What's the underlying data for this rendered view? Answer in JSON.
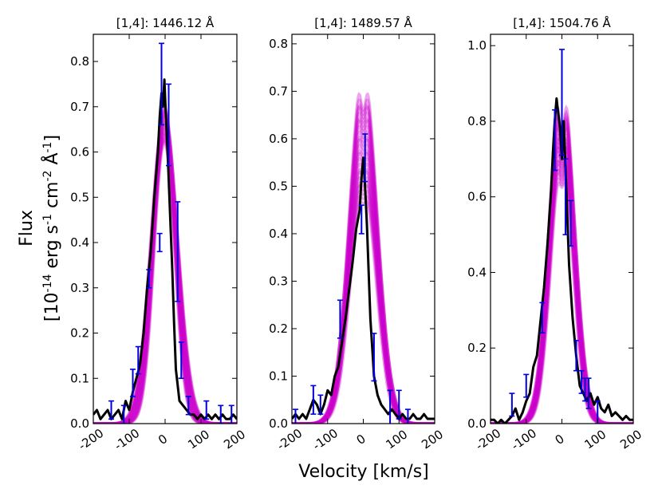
{
  "figure": {
    "ylabel_line1": "Flux",
    "ylabel_line2_parts": [
      "[10",
      "-14",
      " erg s",
      "-1",
      " cm",
      "-2",
      " Å",
      "-1",
      "]"
    ],
    "xlabel": "Velocity [km/s]"
  },
  "colors": {
    "model": "#cc00cc",
    "data": "#000000",
    "errorbar": "#0000dd"
  },
  "chart_data": [
    {
      "type": "line",
      "title": "[1,4]: 1446.12 Å",
      "xlim": [
        -200,
        200
      ],
      "ylim": [
        0,
        0.86
      ],
      "xticks": [
        -200,
        -100,
        0,
        100,
        200
      ],
      "xtick_labels": [
        "-200",
        "-100",
        "0",
        "100",
        "200"
      ],
      "yticks": [
        0.0,
        0.1,
        0.2,
        0.3,
        0.4,
        0.5,
        0.6,
        0.7,
        0.8
      ],
      "ytick_labels": [
        "0.0",
        "0.1",
        "0.2",
        "0.3",
        "0.4",
        "0.5",
        "0.6",
        "0.7",
        "0.8"
      ],
      "model_band": {
        "center": -2,
        "peak_low": 0.62,
        "peak_high": 0.7,
        "sigma_low": 28,
        "sigma_high": 38,
        "dip": 0.0
      },
      "series": [
        {
          "name": "observed",
          "x": [
            -200,
            -190,
            -180,
            -170,
            -160,
            -150,
            -140,
            -130,
            -120,
            -110,
            -100,
            -90,
            -80,
            -70,
            -60,
            -50,
            -40,
            -30,
            -20,
            -15,
            -10,
            -6,
            -2,
            0,
            4,
            8,
            12,
            16,
            20,
            25,
            30,
            40,
            50,
            60,
            70,
            80,
            90,
            100,
            110,
            120,
            130,
            140,
            150,
            160,
            170,
            180,
            190,
            200
          ],
          "y": [
            0.02,
            0.03,
            0.01,
            0.02,
            0.03,
            0.01,
            0.02,
            0.03,
            0.01,
            0.05,
            0.03,
            0.07,
            0.1,
            0.13,
            0.2,
            0.3,
            0.38,
            0.5,
            0.6,
            0.68,
            0.73,
            0.7,
            0.76,
            0.72,
            0.65,
            0.58,
            0.5,
            0.42,
            0.34,
            0.22,
            0.12,
            0.05,
            0.04,
            0.03,
            0.02,
            0.02,
            0.01,
            0.02,
            0.01,
            0.02,
            0.01,
            0.02,
            0.01,
            0.02,
            0.01,
            0.01,
            0.02,
            0.01
          ]
        }
      ],
      "errorbars": [
        {
          "x": -150,
          "y": 0.03,
          "err": 0.02
        },
        {
          "x": -115,
          "y": 0.02,
          "err": 0.02
        },
        {
          "x": -90,
          "y": 0.09,
          "err": 0.03
        },
        {
          "x": -75,
          "y": 0.14,
          "err": 0.03
        },
        {
          "x": -45,
          "y": 0.32,
          "err": 0.02
        },
        {
          "x": -15,
          "y": 0.4,
          "err": 0.02
        },
        {
          "x": -10,
          "y": 0.75,
          "err": 0.09
        },
        {
          "x": 10,
          "y": 0.66,
          "err": 0.09
        },
        {
          "x": 35,
          "y": 0.38,
          "err": 0.11
        },
        {
          "x": 45,
          "y": 0.14,
          "err": 0.04
        },
        {
          "x": 65,
          "y": 0.04,
          "err": 0.02
        },
        {
          "x": 115,
          "y": 0.03,
          "err": 0.02
        },
        {
          "x": 155,
          "y": 0.02,
          "err": 0.02
        },
        {
          "x": 185,
          "y": 0.02,
          "err": 0.02
        }
      ]
    },
    {
      "type": "line",
      "title": "[1,4]: 1489.57 Å",
      "xlim": [
        -200,
        200
      ],
      "ylim": [
        0,
        0.82
      ],
      "xticks": [
        -200,
        -100,
        0,
        100,
        200
      ],
      "xtick_labels": [
        "-200",
        "-100",
        "0",
        "100",
        "200"
      ],
      "yticks": [
        0.0,
        0.1,
        0.2,
        0.3,
        0.4,
        0.5,
        0.6,
        0.7,
        0.8
      ],
      "ytick_labels": [
        "0.0",
        "0.1",
        "0.2",
        "0.3",
        "0.4",
        "0.5",
        "0.6",
        "0.7",
        "0.8"
      ],
      "model_band": {
        "center": 0,
        "peak_low": 0.5,
        "peak_high": 0.75,
        "sigma_low": 35,
        "sigma_high": 40,
        "dip": 0.12
      },
      "series": [
        {
          "name": "observed",
          "x": [
            -200,
            -190,
            -180,
            -170,
            -160,
            -150,
            -140,
            -130,
            -120,
            -110,
            -100,
            -90,
            -80,
            -70,
            -60,
            -50,
            -40,
            -30,
            -20,
            -10,
            -5,
            0,
            5,
            10,
            15,
            20,
            25,
            30,
            40,
            50,
            60,
            70,
            80,
            90,
            100,
            110,
            120,
            130,
            140,
            150,
            160,
            170,
            180,
            190,
            200
          ],
          "y": [
            0.01,
            0.02,
            0.01,
            0.02,
            0.01,
            0.03,
            0.05,
            0.04,
            0.02,
            0.04,
            0.07,
            0.06,
            0.1,
            0.12,
            0.17,
            0.22,
            0.28,
            0.34,
            0.41,
            0.45,
            0.52,
            0.56,
            0.5,
            0.42,
            0.32,
            0.22,
            0.16,
            0.1,
            0.06,
            0.04,
            0.03,
            0.02,
            0.03,
            0.02,
            0.01,
            0.02,
            0.01,
            0.01,
            0.02,
            0.01,
            0.01,
            0.02,
            0.01,
            0.01,
            0.01
          ]
        }
      ],
      "errorbars": [
        {
          "x": -190,
          "y": 0.01,
          "err": 0.02
        },
        {
          "x": -140,
          "y": 0.05,
          "err": 0.03
        },
        {
          "x": -120,
          "y": 0.04,
          "err": 0.02
        },
        {
          "x": -65,
          "y": 0.22,
          "err": 0.04
        },
        {
          "x": -5,
          "y": 0.43,
          "err": 0.03
        },
        {
          "x": 5,
          "y": 0.56,
          "err": 0.05
        },
        {
          "x": 30,
          "y": 0.14,
          "err": 0.05
        },
        {
          "x": 75,
          "y": 0.03,
          "err": 0.04
        },
        {
          "x": 100,
          "y": 0.04,
          "err": 0.03
        },
        {
          "x": 125,
          "y": 0.01,
          "err": 0.02
        }
      ]
    },
    {
      "type": "line",
      "title": "[1,4]: 1504.76 Å",
      "xlim": [
        -200,
        200
      ],
      "ylim": [
        0,
        1.03
      ],
      "xticks": [
        -200,
        -100,
        0,
        100,
        200
      ],
      "xtick_labels": [
        "-200",
        "-100",
        "0",
        "100",
        "200"
      ],
      "yticks": [
        0.0,
        0.2,
        0.4,
        0.6,
        0.8,
        1.0
      ],
      "ytick_labels": [
        "0.0",
        "0.2",
        "0.4",
        "0.6",
        "0.8",
        "1.0"
      ],
      "model_band": {
        "center": 0,
        "peak_low": 0.7,
        "peak_high": 0.93,
        "sigma_low": 30,
        "sigma_high": 36,
        "dip": 0.18
      },
      "series": [
        {
          "name": "observed",
          "x": [
            -200,
            -190,
            -180,
            -170,
            -160,
            -150,
            -140,
            -130,
            -120,
            -110,
            -100,
            -90,
            -80,
            -70,
            -60,
            -50,
            -40,
            -30,
            -25,
            -20,
            -15,
            -10,
            -5,
            0,
            5,
            10,
            15,
            20,
            25,
            30,
            40,
            50,
            60,
            70,
            80,
            90,
            100,
            110,
            120,
            130,
            140,
            150,
            160,
            170,
            180,
            190,
            200
          ],
          "y": [
            0.01,
            0.01,
            0.0,
            0.01,
            0.0,
            0.01,
            0.02,
            0.04,
            0.01,
            0.03,
            0.06,
            0.08,
            0.15,
            0.18,
            0.27,
            0.36,
            0.48,
            0.62,
            0.72,
            0.8,
            0.86,
            0.82,
            0.78,
            0.7,
            0.8,
            0.68,
            0.55,
            0.42,
            0.35,
            0.28,
            0.18,
            0.1,
            0.08,
            0.06,
            0.08,
            0.05,
            0.07,
            0.04,
            0.03,
            0.05,
            0.02,
            0.03,
            0.02,
            0.01,
            0.02,
            0.01,
            0.01
          ]
        }
      ],
      "errorbars": [
        {
          "x": -140,
          "y": 0.05,
          "err": 0.03
        },
        {
          "x": -100,
          "y": 0.1,
          "err": 0.03
        },
        {
          "x": -55,
          "y": 0.28,
          "err": 0.04
        },
        {
          "x": -20,
          "y": 0.75,
          "err": 0.08
        },
        {
          "x": 0,
          "y": 0.85,
          "err": 0.14
        },
        {
          "x": 10,
          "y": 0.6,
          "err": 0.1
        },
        {
          "x": 25,
          "y": 0.53,
          "err": 0.06
        },
        {
          "x": 40,
          "y": 0.18,
          "err": 0.04
        },
        {
          "x": 55,
          "y": 0.11,
          "err": 0.03
        },
        {
          "x": 65,
          "y": 0.09,
          "err": 0.03
        },
        {
          "x": 75,
          "y": 0.08,
          "err": 0.04
        },
        {
          "x": 100,
          "y": 0.03,
          "err": 0.03
        }
      ]
    }
  ]
}
